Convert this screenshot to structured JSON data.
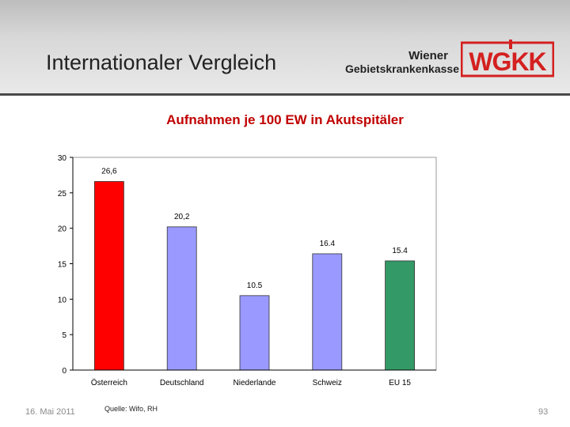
{
  "slide": {
    "title": "Internationaler Vergleich",
    "org_line1": "Wiener",
    "org_line2": "Gebietskrankenkasse",
    "logo_text": "WGKK",
    "date": "16. Mai 2011",
    "source": "Quelle: Wifo, RH",
    "page_number": "93"
  },
  "colors": {
    "red": "#ff0000",
    "periwinkle": "#9999ff",
    "green": "#339966",
    "title_red": "#c00000"
  },
  "chart_data": {
    "type": "bar",
    "title": "Aufnahmen je 100 EW in Akutspitäler",
    "categories": [
      "Österreich",
      "Deutschland",
      "Niederlande",
      "Schweiz",
      "EU 15"
    ],
    "values": [
      26.6,
      20.2,
      10.5,
      16.4,
      15.4
    ],
    "value_labels": [
      "26,6",
      "20,2",
      "10.5",
      "16.4",
      "15.4"
    ],
    "bar_colors": [
      "#ff0000",
      "#9999ff",
      "#9999ff",
      "#9999ff",
      "#339966"
    ],
    "yticks": [
      "0",
      "5",
      "10",
      "15",
      "20",
      "25",
      "30"
    ],
    "ylim": [
      0,
      30
    ],
    "xlabel": "",
    "ylabel": "",
    "grid": false,
    "legend": "none"
  }
}
